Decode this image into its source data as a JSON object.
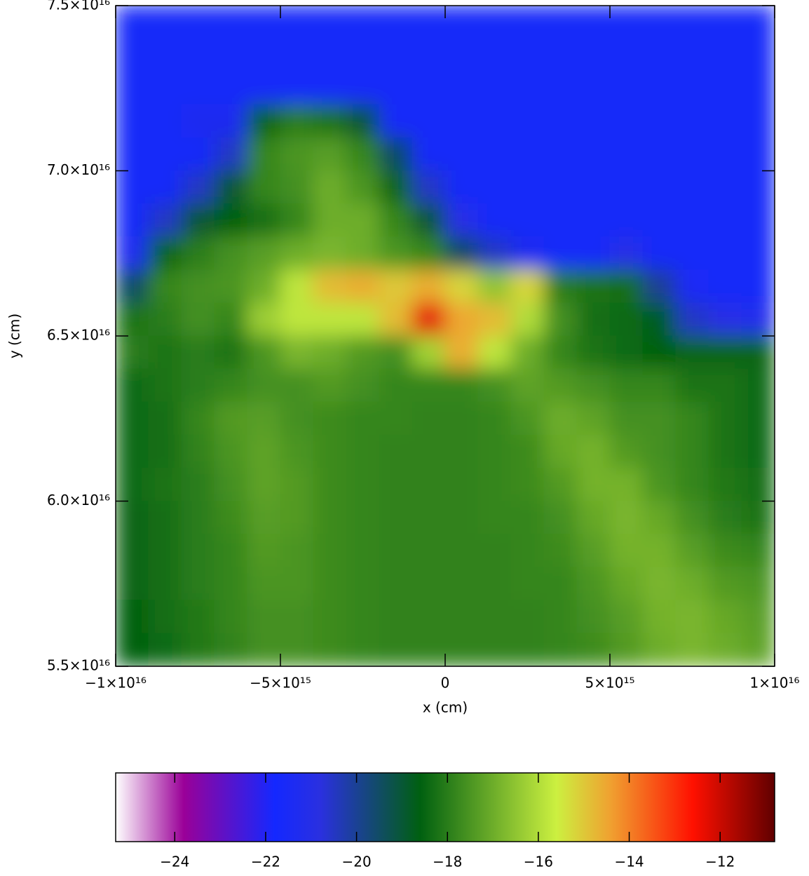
{
  "chart_data": {
    "type": "heatmap",
    "xlabel": "x (cm)",
    "ylabel": "y (cm)",
    "xlim": [
      -1e+16,
      1e+16
    ],
    "ylim": [
      5.5e+16,
      7.5e+16
    ],
    "xticks": [
      {
        "value": -1e+16,
        "label": "−1×10¹⁶"
      },
      {
        "value": -5000000000000000.0,
        "label": "−5×10¹⁵"
      },
      0,
      {
        "value": 5000000000000000.0,
        "label": "5×10¹⁵"
      },
      {
        "value": 1e+16,
        "label": "1×10¹⁶"
      }
    ],
    "yticks": [
      {
        "value": 5.5e+16,
        "label": "5.5×10¹⁶"
      },
      {
        "value": 6e+16,
        "label": "6.0×10¹⁶"
      },
      {
        "value": 6.5e+16,
        "label": "6.5×10¹⁶"
      },
      {
        "value": 7e+16,
        "label": "7.0×10¹⁶"
      },
      {
        "value": 7.5e+16,
        "label": "7.5×10¹⁶"
      }
    ],
    "z": [
      [
        -21.6,
        -21.6,
        -21.6,
        -21.6,
        -21.6,
        -21.6,
        -21.6,
        -21.6,
        -21.6,
        -21.6,
        -21.6,
        -21.6,
        -21.6,
        -21.6,
        -21.6,
        -21.6,
        -21.6,
        -21.6,
        -21.6,
        -21.6
      ],
      [
        -21.6,
        -21.6,
        -21.6,
        -21.6,
        -21.6,
        -21.6,
        -21.6,
        -21.6,
        -21.6,
        -21.6,
        -21.6,
        -21.6,
        -21.6,
        -21.6,
        -21.6,
        -21.6,
        -21.6,
        -21.6,
        -21.6,
        -21.6
      ],
      [
        -21.6,
        -21.6,
        -21.6,
        -21.6,
        -21.6,
        -21.6,
        -21.6,
        -21.6,
        -21.6,
        -21.6,
        -21.6,
        -21.6,
        -21.6,
        -21.6,
        -21.6,
        -21.6,
        -21.6,
        -21.6,
        -21.6,
        -21.6
      ],
      [
        -21.6,
        -21.6,
        -21.3,
        -21.3,
        -18.5,
        -18.0,
        -18.2,
        -19.0,
        -21.6,
        -21.6,
        -21.6,
        -21.6,
        -21.6,
        -21.6,
        -21.6,
        -21.6,
        -21.6,
        -21.6,
        -21.6,
        -21.6
      ],
      [
        -21.6,
        -21.6,
        -21.6,
        -20.5,
        -17.8,
        -17.5,
        -17.3,
        -17.8,
        -19.5,
        -21.6,
        -21.6,
        -21.6,
        -21.6,
        -21.6,
        -21.6,
        -21.6,
        -21.6,
        -21.6,
        -21.6,
        -21.6
      ],
      [
        -21.6,
        -21.6,
        -20.5,
        -19.0,
        -17.8,
        -17.6,
        -17.0,
        -17.5,
        -18.5,
        -20.5,
        -21.6,
        -21.6,
        -21.6,
        -21.6,
        -21.6,
        -21.6,
        -21.6,
        -21.6,
        -21.6,
        -21.6
      ],
      [
        -21.6,
        -20.5,
        -19.0,
        -18.6,
        -18.3,
        -17.8,
        -17.0,
        -17.0,
        -17.8,
        -19.0,
        -21.0,
        -21.6,
        -21.6,
        -21.6,
        -21.6,
        -21.6,
        -21.6,
        -21.6,
        -21.6,
        -21.6
      ],
      [
        -21.3,
        -18.5,
        -18.0,
        -17.6,
        -17.3,
        -17.0,
        -16.8,
        -17.0,
        -17.5,
        -17.8,
        -19.5,
        -20.5,
        -21.3,
        -21.6,
        -21.6,
        -21.0,
        -21.6,
        -21.6,
        -21.6,
        -21.6
      ],
      [
        -19.5,
        -17.8,
        -17.6,
        -17.5,
        -17.0,
        -15.8,
        -14.8,
        -14.6,
        -15.0,
        -14.6,
        -15.2,
        -16.5,
        -15.2,
        -18.0,
        -18.2,
        -18.3,
        -20.0,
        -21.5,
        -21.6,
        -21.6
      ],
      [
        -18.2,
        -18.0,
        -17.6,
        -17.8,
        -16.3,
        -15.8,
        -15.8,
        -15.8,
        -14.8,
        -12.3,
        -14.5,
        -14.8,
        -16.0,
        -17.6,
        -18.3,
        -18.4,
        -18.8,
        -20.5,
        -21.0,
        -21.2
      ],
      [
        -18.0,
        -18.2,
        -18.0,
        -18.2,
        -17.5,
        -16.8,
        -17.0,
        -17.4,
        -17.6,
        -16.2,
        -14.6,
        -15.8,
        -17.0,
        -17.8,
        -18.2,
        -18.4,
        -18.6,
        -18.5,
        -18.5,
        -18.5
      ],
      [
        -18.4,
        -18.2,
        -18.0,
        -17.8,
        -17.6,
        -17.6,
        -17.4,
        -17.6,
        -17.8,
        -17.8,
        -17.8,
        -17.6,
        -17.2,
        -17.4,
        -17.6,
        -17.8,
        -17.8,
        -18.2,
        -18.2,
        -18.4
      ],
      [
        -18.4,
        -18.3,
        -17.8,
        -17.4,
        -17.3,
        -17.6,
        -17.7,
        -17.8,
        -17.8,
        -17.9,
        -17.9,
        -17.8,
        -17.5,
        -17.0,
        -17.2,
        -17.6,
        -17.6,
        -17.8,
        -18.2,
        -18.4
      ],
      [
        -18.4,
        -18.3,
        -17.9,
        -17.5,
        -17.2,
        -17.5,
        -17.7,
        -17.8,
        -17.9,
        -17.9,
        -17.9,
        -17.8,
        -17.7,
        -17.1,
        -16.9,
        -17.4,
        -17.6,
        -17.8,
        -18.2,
        -18.4
      ],
      [
        -18.4,
        -18.2,
        -18.0,
        -17.6,
        -17.2,
        -17.4,
        -17.7,
        -17.8,
        -17.9,
        -17.9,
        -17.9,
        -17.8,
        -17.7,
        -17.4,
        -16.9,
        -16.9,
        -17.5,
        -17.8,
        -18.1,
        -18.3
      ],
      [
        -18.5,
        -18.3,
        -18.0,
        -17.7,
        -17.3,
        -17.4,
        -17.7,
        -17.8,
        -17.9,
        -17.9,
        -17.9,
        -17.8,
        -17.8,
        -17.6,
        -17.1,
        -16.8,
        -17.1,
        -17.6,
        -18.0,
        -18.2
      ],
      [
        -18.5,
        -18.3,
        -18.0,
        -17.8,
        -17.4,
        -17.5,
        -17.7,
        -17.8,
        -17.9,
        -17.9,
        -17.9,
        -17.9,
        -17.8,
        -17.7,
        -17.3,
        -16.9,
        -16.9,
        -17.3,
        -17.7,
        -17.8
      ],
      [
        -18.5,
        -18.3,
        -18.0,
        -17.8,
        -17.5,
        -17.5,
        -17.7,
        -17.8,
        -17.9,
        -17.9,
        -17.9,
        -17.9,
        -17.8,
        -17.8,
        -17.5,
        -17.1,
        -16.8,
        -17.0,
        -17.4,
        -17.5
      ],
      [
        -18.6,
        -18.3,
        -18.1,
        -17.8,
        -17.6,
        -17.6,
        -17.7,
        -17.8,
        -17.9,
        -17.9,
        -17.9,
        -17.9,
        -17.9,
        -17.8,
        -17.6,
        -17.3,
        -16.9,
        -16.8,
        -17.1,
        -17.3
      ],
      [
        -18.6,
        -18.4,
        -18.1,
        -17.9,
        -17.6,
        -17.6,
        -17.7,
        -17.8,
        -17.9,
        -17.9,
        -17.9,
        -17.9,
        -17.9,
        -17.8,
        -17.7,
        -17.4,
        -17.0,
        -16.8,
        -17.0,
        -17.2
      ]
    ],
    "colorbar": {
      "clim": [
        -25.3,
        -10.8
      ],
      "ticks": [
        {
          "value": -24,
          "label": "−24"
        },
        {
          "value": -22,
          "label": "−22"
        },
        {
          "value": -20,
          "label": "−20"
        },
        {
          "value": -18,
          "label": "−18"
        },
        {
          "value": -16,
          "label": "−16"
        },
        {
          "value": -14,
          "label": "−14"
        },
        {
          "value": -12,
          "label": "−12"
        }
      ],
      "colormap": [
        {
          "value": -25.3,
          "color": "#ffffff"
        },
        {
          "value": -23.8,
          "color": "#9a0098"
        },
        {
          "value": -21.8,
          "color": "#1428ff"
        },
        {
          "value": -20.8,
          "color": "#2a30e0"
        },
        {
          "value": -18.6,
          "color": "#006010"
        },
        {
          "value": -15.6,
          "color": "#ccf040"
        },
        {
          "value": -14.4,
          "color": "#f0a030"
        },
        {
          "value": -12.6,
          "color": "#ff1000"
        },
        {
          "value": -10.8,
          "color": "#600000"
        }
      ]
    }
  }
}
